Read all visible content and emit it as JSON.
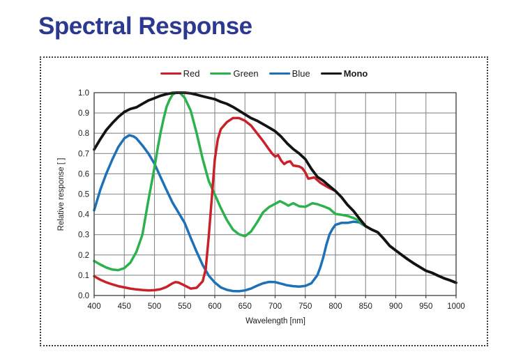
{
  "page": {
    "title": "Spectral Response"
  },
  "colors": {
    "title": "#2b3990",
    "red": "#c9202a",
    "green": "#2cb24c",
    "blue": "#1d71b8",
    "mono": "#131313",
    "grid": "#8a8a8a",
    "plot_border": "#404040",
    "axis_text": "#1c1c1c",
    "frame_dots": "#3c3c3c"
  },
  "chart_data": {
    "type": "line",
    "xlabel": "Wavelength [nm]",
    "ylabel": "Relative response [ ]",
    "xlim": [
      400,
      1000
    ],
    "ylim": [
      0.0,
      1.0
    ],
    "x_ticks": [
      400,
      450,
      500,
      550,
      600,
      650,
      700,
      750,
      800,
      850,
      900,
      950,
      1000
    ],
    "y_ticks": [
      0.0,
      0.1,
      0.2,
      0.3,
      0.4,
      0.5,
      0.6,
      0.7,
      0.8,
      0.9,
      1.0
    ],
    "grid": true,
    "legend_position": "top",
    "series": [
      {
        "name": "Red",
        "color_key": "red",
        "z": 3,
        "bold_legend": false,
        "points": [
          [
            400,
            0.095
          ],
          [
            410,
            0.078
          ],
          [
            420,
            0.065
          ],
          [
            430,
            0.055
          ],
          [
            440,
            0.046
          ],
          [
            450,
            0.04
          ],
          [
            460,
            0.034
          ],
          [
            470,
            0.03
          ],
          [
            480,
            0.027
          ],
          [
            490,
            0.025
          ],
          [
            500,
            0.026
          ],
          [
            510,
            0.031
          ],
          [
            520,
            0.042
          ],
          [
            530,
            0.06
          ],
          [
            535,
            0.066
          ],
          [
            540,
            0.064
          ],
          [
            550,
            0.049
          ],
          [
            560,
            0.034
          ],
          [
            570,
            0.038
          ],
          [
            580,
            0.07
          ],
          [
            585,
            0.13
          ],
          [
            590,
            0.29
          ],
          [
            595,
            0.48
          ],
          [
            600,
            0.67
          ],
          [
            605,
            0.77
          ],
          [
            610,
            0.82
          ],
          [
            620,
            0.855
          ],
          [
            630,
            0.875
          ],
          [
            640,
            0.875
          ],
          [
            650,
            0.862
          ],
          [
            660,
            0.838
          ],
          [
            670,
            0.8
          ],
          [
            680,
            0.762
          ],
          [
            690,
            0.72
          ],
          [
            695,
            0.7
          ],
          [
            700,
            0.685
          ],
          [
            705,
            0.692
          ],
          [
            710,
            0.665
          ],
          [
            715,
            0.648
          ],
          [
            720,
            0.658
          ],
          [
            725,
            0.662
          ],
          [
            730,
            0.641
          ],
          [
            740,
            0.636
          ],
          [
            745,
            0.628
          ],
          [
            750,
            0.607
          ],
          [
            755,
            0.576
          ],
          [
            765,
            0.582
          ],
          [
            775,
            0.556
          ],
          [
            785,
            0.538
          ],
          [
            790,
            0.53
          ],
          [
            800,
            0.515
          ],
          [
            810,
            0.485
          ],
          [
            820,
            0.447
          ],
          [
            830,
            0.417
          ],
          [
            840,
            0.378
          ],
          [
            850,
            0.342
          ],
          [
            860,
            0.325
          ],
          [
            870,
            0.312
          ],
          [
            880,
            0.28
          ],
          [
            890,
            0.245
          ],
          [
            900,
            0.222
          ],
          [
            910,
            0.2
          ],
          [
            920,
            0.178
          ],
          [
            930,
            0.158
          ],
          [
            940,
            0.14
          ],
          [
            950,
            0.122
          ],
          [
            960,
            0.112
          ],
          [
            970,
            0.098
          ],
          [
            980,
            0.085
          ],
          [
            990,
            0.075
          ],
          [
            1000,
            0.063
          ]
        ]
      },
      {
        "name": "Green",
        "color_key": "green",
        "z": 2,
        "bold_legend": false,
        "points": [
          [
            400,
            0.17
          ],
          [
            410,
            0.153
          ],
          [
            420,
            0.138
          ],
          [
            430,
            0.128
          ],
          [
            440,
            0.125
          ],
          [
            450,
            0.135
          ],
          [
            460,
            0.162
          ],
          [
            470,
            0.215
          ],
          [
            480,
            0.3
          ],
          [
            490,
            0.47
          ],
          [
            500,
            0.63
          ],
          [
            505,
            0.72
          ],
          [
            510,
            0.8
          ],
          [
            515,
            0.87
          ],
          [
            520,
            0.93
          ],
          [
            525,
            0.965
          ],
          [
            530,
            0.99
          ],
          [
            535,
            1.0
          ],
          [
            542,
            1.0
          ],
          [
            550,
            0.975
          ],
          [
            560,
            0.912
          ],
          [
            570,
            0.8
          ],
          [
            580,
            0.672
          ],
          [
            590,
            0.565
          ],
          [
            600,
            0.498
          ],
          [
            610,
            0.432
          ],
          [
            620,
            0.372
          ],
          [
            630,
            0.325
          ],
          [
            640,
            0.302
          ],
          [
            650,
            0.292
          ],
          [
            660,
            0.315
          ],
          [
            670,
            0.36
          ],
          [
            680,
            0.41
          ],
          [
            690,
            0.436
          ],
          [
            700,
            0.452
          ],
          [
            708,
            0.465
          ],
          [
            715,
            0.455
          ],
          [
            722,
            0.443
          ],
          [
            730,
            0.455
          ],
          [
            740,
            0.44
          ],
          [
            750,
            0.437
          ],
          [
            762,
            0.455
          ],
          [
            770,
            0.45
          ],
          [
            780,
            0.44
          ],
          [
            790,
            0.428
          ],
          [
            800,
            0.402
          ],
          [
            810,
            0.398
          ],
          [
            820,
            0.392
          ],
          [
            830,
            0.382
          ],
          [
            838,
            0.37
          ],
          [
            845,
            0.352
          ],
          [
            850,
            0.342
          ],
          [
            860,
            0.325
          ],
          [
            870,
            0.312
          ],
          [
            880,
            0.28
          ],
          [
            890,
            0.245
          ],
          [
            900,
            0.222
          ],
          [
            910,
            0.2
          ],
          [
            920,
            0.178
          ],
          [
            930,
            0.158
          ],
          [
            940,
            0.14
          ],
          [
            950,
            0.122
          ],
          [
            960,
            0.112
          ],
          [
            970,
            0.098
          ],
          [
            980,
            0.085
          ],
          [
            990,
            0.075
          ],
          [
            1000,
            0.063
          ]
        ]
      },
      {
        "name": "Blue",
        "color_key": "blue",
        "z": 1,
        "bold_legend": false,
        "points": [
          [
            400,
            0.42
          ],
          [
            410,
            0.52
          ],
          [
            420,
            0.6
          ],
          [
            430,
            0.67
          ],
          [
            440,
            0.732
          ],
          [
            450,
            0.775
          ],
          [
            458,
            0.79
          ],
          [
            465,
            0.785
          ],
          [
            470,
            0.775
          ],
          [
            480,
            0.74
          ],
          [
            490,
            0.7
          ],
          [
            500,
            0.65
          ],
          [
            510,
            0.585
          ],
          [
            520,
            0.52
          ],
          [
            530,
            0.458
          ],
          [
            540,
            0.408
          ],
          [
            550,
            0.358
          ],
          [
            560,
            0.285
          ],
          [
            570,
            0.215
          ],
          [
            580,
            0.15
          ],
          [
            590,
            0.098
          ],
          [
            600,
            0.064
          ],
          [
            610,
            0.04
          ],
          [
            620,
            0.028
          ],
          [
            630,
            0.022
          ],
          [
            640,
            0.021
          ],
          [
            650,
            0.025
          ],
          [
            660,
            0.034
          ],
          [
            670,
            0.048
          ],
          [
            680,
            0.06
          ],
          [
            690,
            0.067
          ],
          [
            700,
            0.066
          ],
          [
            710,
            0.058
          ],
          [
            720,
            0.05
          ],
          [
            730,
            0.046
          ],
          [
            740,
            0.044
          ],
          [
            750,
            0.047
          ],
          [
            760,
            0.06
          ],
          [
            770,
            0.1
          ],
          [
            775,
            0.14
          ],
          [
            780,
            0.19
          ],
          [
            785,
            0.25
          ],
          [
            790,
            0.3
          ],
          [
            795,
            0.328
          ],
          [
            800,
            0.348
          ],
          [
            810,
            0.358
          ],
          [
            820,
            0.358
          ],
          [
            830,
            0.364
          ],
          [
            840,
            0.36
          ],
          [
            845,
            0.35
          ],
          [
            850,
            0.342
          ],
          [
            860,
            0.325
          ],
          [
            870,
            0.312
          ],
          [
            880,
            0.28
          ],
          [
            890,
            0.245
          ],
          [
            900,
            0.222
          ],
          [
            910,
            0.2
          ],
          [
            920,
            0.178
          ],
          [
            930,
            0.158
          ],
          [
            940,
            0.14
          ],
          [
            950,
            0.122
          ],
          [
            960,
            0.112
          ],
          [
            970,
            0.098
          ],
          [
            980,
            0.085
          ],
          [
            990,
            0.075
          ],
          [
            1000,
            0.063
          ]
        ]
      },
      {
        "name": "Mono",
        "color_key": "mono",
        "z": 4,
        "bold_legend": true,
        "points": [
          [
            400,
            0.72
          ],
          [
            410,
            0.77
          ],
          [
            420,
            0.815
          ],
          [
            430,
            0.85
          ],
          [
            440,
            0.88
          ],
          [
            450,
            0.905
          ],
          [
            460,
            0.92
          ],
          [
            470,
            0.928
          ],
          [
            480,
            0.945
          ],
          [
            490,
            0.962
          ],
          [
            500,
            0.973
          ],
          [
            510,
            0.985
          ],
          [
            520,
            0.993
          ],
          [
            530,
            0.999
          ],
          [
            540,
            1.0
          ],
          [
            550,
            1.0
          ],
          [
            560,
            0.997
          ],
          [
            570,
            0.99
          ],
          [
            580,
            0.982
          ],
          [
            590,
            0.975
          ],
          [
            600,
            0.968
          ],
          [
            610,
            0.955
          ],
          [
            620,
            0.945
          ],
          [
            630,
            0.93
          ],
          [
            640,
            0.912
          ],
          [
            650,
            0.893
          ],
          [
            660,
            0.875
          ],
          [
            670,
            0.862
          ],
          [
            680,
            0.845
          ],
          [
            690,
            0.828
          ],
          [
            700,
            0.81
          ],
          [
            710,
            0.783
          ],
          [
            720,
            0.75
          ],
          [
            730,
            0.722
          ],
          [
            740,
            0.7
          ],
          [
            750,
            0.672
          ],
          [
            760,
            0.625
          ],
          [
            770,
            0.585
          ],
          [
            780,
            0.565
          ],
          [
            790,
            0.54
          ],
          [
            800,
            0.515
          ],
          [
            810,
            0.485
          ],
          [
            820,
            0.447
          ],
          [
            830,
            0.417
          ],
          [
            840,
            0.378
          ],
          [
            850,
            0.342
          ],
          [
            860,
            0.325
          ],
          [
            870,
            0.312
          ],
          [
            880,
            0.28
          ],
          [
            890,
            0.245
          ],
          [
            900,
            0.222
          ],
          [
            910,
            0.2
          ],
          [
            920,
            0.178
          ],
          [
            930,
            0.158
          ],
          [
            940,
            0.14
          ],
          [
            950,
            0.122
          ],
          [
            960,
            0.112
          ],
          [
            970,
            0.098
          ],
          [
            980,
            0.085
          ],
          [
            990,
            0.075
          ],
          [
            1000,
            0.063
          ]
        ]
      }
    ]
  }
}
